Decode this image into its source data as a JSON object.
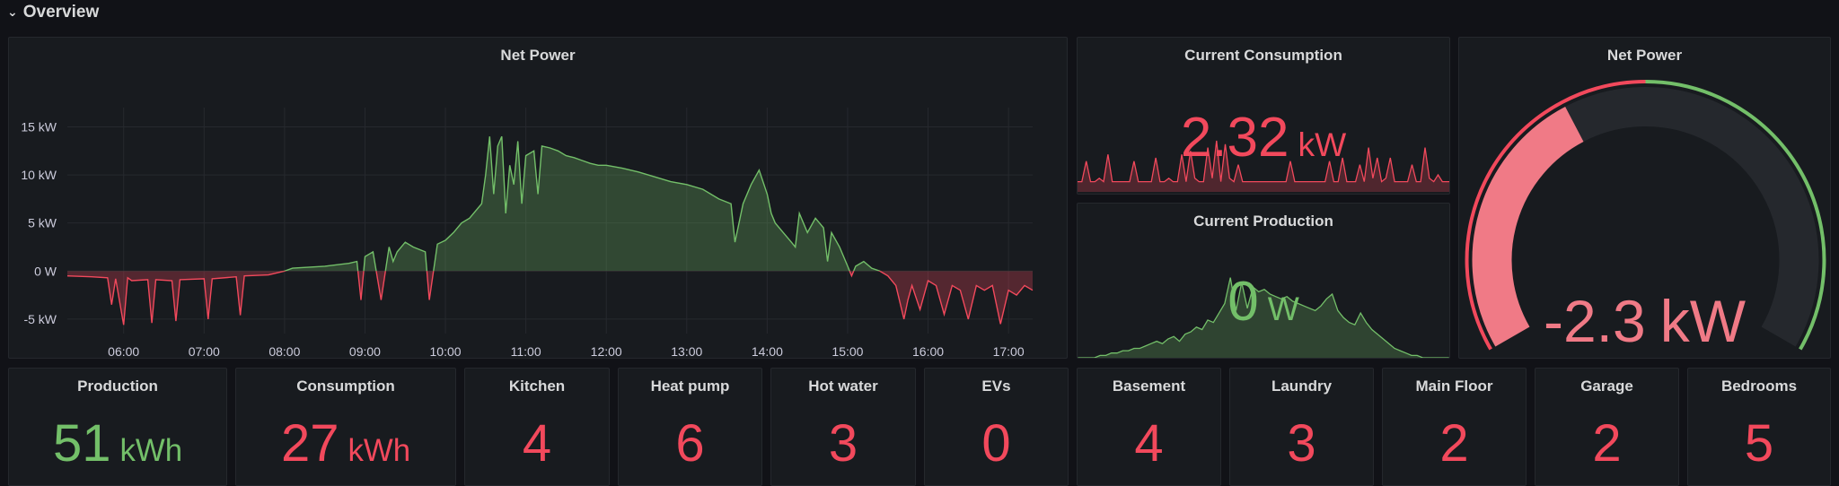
{
  "row": {
    "title": "Overview"
  },
  "colors": {
    "red": "#f2495c",
    "green": "#73bf69",
    "gauge_red": "#f07a86",
    "gauge_track": "#25282d"
  },
  "net_power_chart": {
    "title": "Net Power",
    "chart_data": {
      "type": "area",
      "title": "Net Power",
      "x_ticks": [
        "06:00",
        "07:00",
        "08:00",
        "09:00",
        "10:00",
        "11:00",
        "12:00",
        "13:00",
        "14:00",
        "15:00",
        "16:00",
        "17:00"
      ],
      "y_ticks": [
        "15 kW",
        "10 kW",
        "5 kW",
        "0 W",
        "-5 kW"
      ],
      "y_tick_values": [
        15,
        10,
        5,
        0,
        -5
      ],
      "ylim": [
        -6.5,
        17
      ],
      "xlim": [
        5.3,
        17.3
      ],
      "x": [
        5.3,
        5.6,
        5.8,
        5.85,
        5.9,
        6.0,
        6.05,
        6.1,
        6.3,
        6.35,
        6.4,
        6.6,
        6.65,
        6.7,
        7.0,
        7.05,
        7.1,
        7.4,
        7.45,
        7.5,
        7.8,
        7.9,
        8.0,
        8.1,
        8.5,
        8.8,
        8.9,
        8.95,
        9.0,
        9.1,
        9.2,
        9.3,
        9.35,
        9.4,
        9.5,
        9.6,
        9.75,
        9.8,
        9.9,
        10.0,
        10.1,
        10.2,
        10.3,
        10.45,
        10.5,
        10.55,
        10.6,
        10.65,
        10.7,
        10.75,
        10.8,
        10.85,
        10.9,
        10.95,
        11.0,
        11.1,
        11.15,
        11.2,
        11.3,
        11.4,
        11.5,
        11.6,
        11.7,
        11.8,
        11.9,
        12.0,
        12.2,
        12.4,
        12.6,
        12.8,
        13.0,
        13.2,
        13.4,
        13.55,
        13.6,
        13.65,
        13.7,
        13.8,
        13.9,
        14.0,
        14.05,
        14.1,
        14.2,
        14.3,
        14.35,
        14.4,
        14.5,
        14.6,
        14.7,
        14.75,
        14.8,
        14.9,
        15.0,
        15.05,
        15.1,
        15.2,
        15.3,
        15.4,
        15.5,
        15.6,
        15.7,
        15.75,
        15.8,
        15.9,
        16.0,
        16.1,
        16.2,
        16.3,
        16.4,
        16.5,
        16.6,
        16.7,
        16.8,
        16.9,
        17.0,
        17.1,
        17.2,
        17.3
      ],
      "values": [
        -0.5,
        -0.6,
        -0.7,
        -3.5,
        -0.8,
        -5.6,
        -0.7,
        -1.0,
        -0.9,
        -5.4,
        -0.9,
        -1.0,
        -5.2,
        -0.9,
        -0.8,
        -5.0,
        -0.8,
        -0.6,
        -4.6,
        -0.5,
        -0.4,
        -0.2,
        0.0,
        0.3,
        0.5,
        0.8,
        1.0,
        -3.0,
        1.5,
        2.0,
        -3.0,
        2.5,
        1.0,
        2.0,
        3.0,
        2.5,
        2.0,
        -3.0,
        2.8,
        3.2,
        4.0,
        5.0,
        5.5,
        7.0,
        10.0,
        14.0,
        8.0,
        13.0,
        14.0,
        6.0,
        11.0,
        9.0,
        13.5,
        7.0,
        12.0,
        12.5,
        8.0,
        13.0,
        12.8,
        12.5,
        12.0,
        11.8,
        11.5,
        11.2,
        11.0,
        11.0,
        10.7,
        10.3,
        9.8,
        9.3,
        9.0,
        8.5,
        7.5,
        7.0,
        3.0,
        5.0,
        7.0,
        9.0,
        10.5,
        8.0,
        6.0,
        5.0,
        4.0,
        3.0,
        2.5,
        6.0,
        4.0,
        5.5,
        4.5,
        1.0,
        4.0,
        2.5,
        0.5,
        -0.5,
        0.5,
        1.0,
        0.3,
        0.0,
        -0.5,
        -1.5,
        -5.0,
        -3.0,
        -1.5,
        -4.0,
        -1.0,
        -1.5,
        -4.5,
        -1.5,
        -2.0,
        -5.0,
        -1.5,
        -2.0,
        -1.5,
        -5.5,
        -2.0,
        -2.5,
        -1.5,
        -2.0
      ]
    }
  },
  "current_consumption": {
    "title": "Current Consumption",
    "value": "2.32",
    "unit": "kW",
    "chart_data": {
      "type": "area",
      "values": [
        0.3,
        0.3,
        0.9,
        0.3,
        0.3,
        0.4,
        0.3,
        1.1,
        0.3,
        0.3,
        0.3,
        0.3,
        0.3,
        0.9,
        0.3,
        0.3,
        0.3,
        0.3,
        1.0,
        0.3,
        0.3,
        0.4,
        0.3,
        0.3,
        1.1,
        0.3,
        1.2,
        0.4,
        0.3,
        0.3,
        1.3,
        0.4,
        1.5,
        0.3,
        1.4,
        0.4,
        0.3,
        0.8,
        0.3,
        0.3,
        0.3,
        0.3,
        0.3,
        0.3,
        0.3,
        0.3,
        0.3,
        0.3,
        0.3,
        0.9,
        0.3,
        0.3,
        0.3,
        0.3,
        0.3,
        0.3,
        0.3,
        0.3,
        0.9,
        0.3,
        0.3,
        1.0,
        0.3,
        0.3,
        0.3,
        0.8,
        0.3,
        1.3,
        0.4,
        1.0,
        0.3,
        0.4,
        1.0,
        0.3,
        0.3,
        0.3,
        0.3,
        0.8,
        0.3,
        0.3,
        1.3,
        0.4,
        0.3,
        0.5,
        0.3,
        0.3,
        0.3
      ]
    }
  },
  "current_production": {
    "title": "Current Production",
    "value": "0",
    "unit": "W",
    "chart_data": {
      "type": "area",
      "values": [
        0,
        0,
        0,
        0,
        0.1,
        0.1,
        0.2,
        0.2,
        0.3,
        0.3,
        0.4,
        0.4,
        0.5,
        0.6,
        0.7,
        0.6,
        0.8,
        0.9,
        0.7,
        1.0,
        1.1,
        1.3,
        1.2,
        1.6,
        1.5,
        1.9,
        2.3,
        3.4,
        2.0,
        3.2,
        2.1,
        3.0,
        2.8,
        2.9,
        2.7,
        2.6,
        2.5,
        2.6,
        2.4,
        2.3,
        2.2,
        2.1,
        2.0,
        2.2,
        2.5,
        2.7,
        2.0,
        1.7,
        1.5,
        1.4,
        1.9,
        1.5,
        1.2,
        1.0,
        0.8,
        0.6,
        0.4,
        0.3,
        0.2,
        0.1,
        0.1,
        0,
        0,
        0,
        0,
        0,
        0
      ]
    }
  },
  "net_power_gauge": {
    "title": "Net Power",
    "value": "-2.3",
    "unit": "kW",
    "chart_data": {
      "type": "gauge",
      "value": -2.3,
      "min": -10,
      "max": 10
    }
  },
  "stats": [
    {
      "title": "Production",
      "value": "51",
      "unit": "kWh",
      "color": "green"
    },
    {
      "title": "Consumption",
      "value": "27",
      "unit": "kWh",
      "color": "red"
    },
    {
      "title": "Kitchen",
      "value": "4",
      "unit": "",
      "color": "red"
    },
    {
      "title": "Heat pump",
      "value": "6",
      "unit": "",
      "color": "red"
    },
    {
      "title": "Hot water",
      "value": "3",
      "unit": "",
      "color": "red"
    },
    {
      "title": "EVs",
      "value": "0",
      "unit": "",
      "color": "red"
    },
    {
      "title": "Basement",
      "value": "4",
      "unit": "",
      "color": "red"
    },
    {
      "title": "Laundry",
      "value": "3",
      "unit": "",
      "color": "red"
    },
    {
      "title": "Main Floor",
      "value": "2",
      "unit": "",
      "color": "red"
    },
    {
      "title": "Garage",
      "value": "2",
      "unit": "",
      "color": "red"
    },
    {
      "title": "Bedrooms",
      "value": "5",
      "unit": "",
      "color": "red"
    }
  ]
}
